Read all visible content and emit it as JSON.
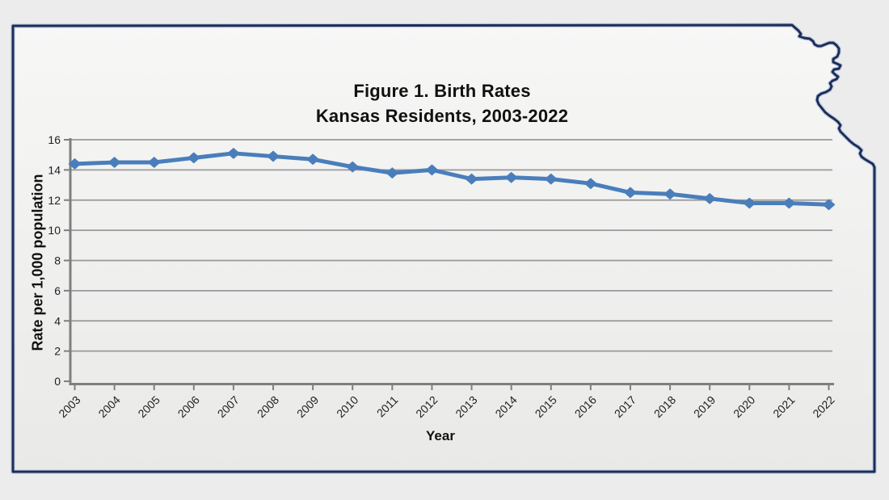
{
  "chart_data": {
    "type": "line",
    "title": "Figure 1. Birth Rates",
    "subtitle": "Kansas Residents, 2003-2022",
    "xlabel": "Year",
    "ylabel": "Rate per 1,000 population",
    "categories": [
      "2003",
      "2004",
      "2005",
      "2006",
      "2007",
      "2008",
      "2009",
      "2010",
      "2011",
      "2012",
      "2013",
      "2014",
      "2015",
      "2016",
      "2017",
      "2018",
      "2019",
      "2020",
      "2021",
      "2022"
    ],
    "series": [
      {
        "name": "Birth rate per 1,000 population",
        "values": [
          14.4,
          14.5,
          14.5,
          14.8,
          15.1,
          14.9,
          14.7,
          14.2,
          13.8,
          14.0,
          13.4,
          13.5,
          13.4,
          13.1,
          12.5,
          12.4,
          12.1,
          11.8,
          11.8,
          11.7
        ]
      }
    ],
    "ylim": [
      0,
      16
    ],
    "ytick_step": 2,
    "yticks": [
      0,
      2,
      4,
      6,
      8,
      10,
      12,
      14,
      16
    ],
    "grid": true,
    "legend": "none",
    "marker": "diamond"
  },
  "colors": {
    "series_line": "#4a7ebb",
    "gridline": "#999999",
    "axis": "#7f7f7f",
    "state_border": "#1b2d5b",
    "text": "#1a1a1a"
  }
}
